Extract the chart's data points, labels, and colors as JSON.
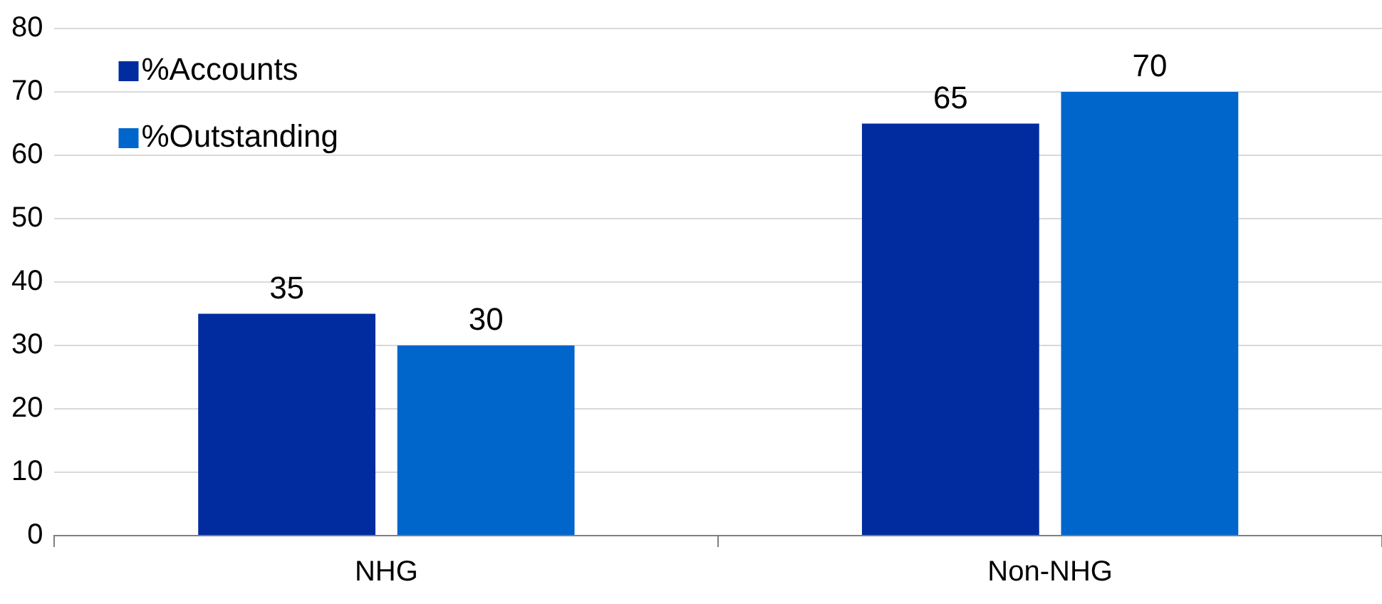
{
  "chart_data": {
    "type": "bar",
    "categories": [
      "NHG",
      "Non-NHG"
    ],
    "series": [
      {
        "name": "%Accounts",
        "color": "#002ca0",
        "values": [
          35,
          65
        ]
      },
      {
        "name": "%Outstanding",
        "color": "#0066cc",
        "values": [
          30,
          70
        ]
      }
    ],
    "ylim": [
      0,
      80
    ],
    "yticks": [
      0,
      10,
      20,
      30,
      40,
      50,
      60,
      70,
      80
    ],
    "grid": "y",
    "legend": "top left",
    "data_labels": true
  }
}
